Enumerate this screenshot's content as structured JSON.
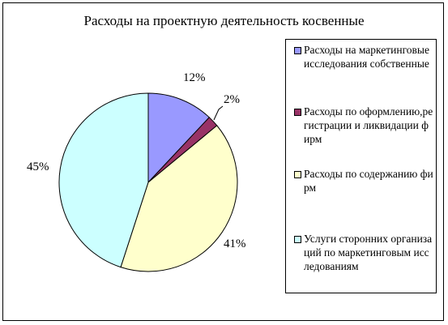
{
  "chart_data": {
    "type": "pie",
    "title": "Расходы на проектную деятельность косвенные",
    "categories": [
      "Расходы на маркетинговые исследования собственные",
      "Расходы по оформлению,регистрации и ликвидации фирм",
      "Расходы по содержанию фирм",
      "Услуги сторонних организаций по маркетинговым исследованиям"
    ],
    "values": [
      12,
      2,
      41,
      45
    ],
    "data_labels": [
      "12%",
      "2%",
      "41%",
      "45%"
    ],
    "colors": [
      "#9999ff",
      "#993366",
      "#ffffcc",
      "#ccffff"
    ],
    "legend_position": "right"
  }
}
